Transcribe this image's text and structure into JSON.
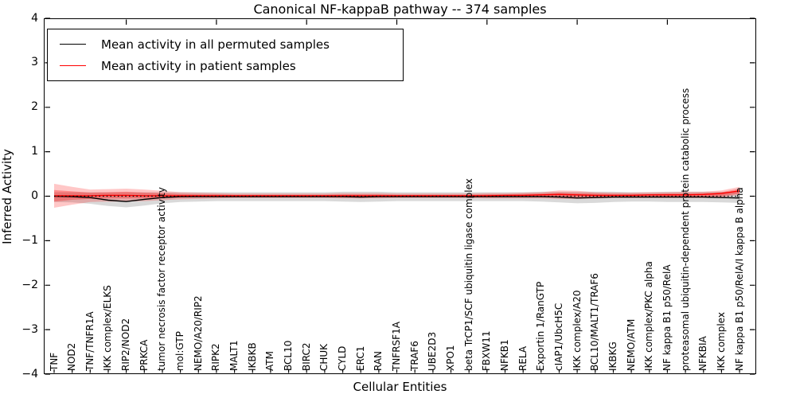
{
  "title": "Canonical NF-kappaB pathway -- 374 samples",
  "legend": {
    "entries": [
      {
        "label": "Mean activity in all permuted samples",
        "color": "#000000"
      },
      {
        "label": "Mean activity in patient samples",
        "color": "#ff0000"
      }
    ]
  },
  "colors": {
    "permuted_line": "#000000",
    "patient_line": "#ff0000",
    "permuted_band": "rgba(0,0,0,0.15)",
    "patient_band_outer": "rgba(255,0,0,0.22)",
    "patient_band_inner": "rgba(255,0,0,0.30)"
  },
  "chart_data": {
    "type": "line",
    "title": "Canonical NF-kappaB pathway -- 374 samples",
    "xlabel": "Cellular Entities",
    "ylabel": "Inferred Activity",
    "ylim": [
      -4,
      4
    ],
    "grid": false,
    "legend_position": "upper left",
    "ytick_values": [
      4,
      3,
      2,
      1,
      0,
      -1,
      -2,
      -3,
      -4
    ],
    "ytick_labels": [
      "4",
      "3",
      "2",
      "1",
      "0",
      "−1",
      "−2",
      "−3",
      "−4"
    ],
    "top_tick_indices": [
      4,
      9,
      14,
      19,
      24,
      29,
      34
    ],
    "zero_line": 0,
    "categories": [
      "TNF",
      "NOD2",
      "TNF/TNFR1A",
      "IKK complex/ELKS",
      "RIP2/NOD2",
      "PRKCA",
      "tumor necrosis factor receptor activity",
      "mol:GTP",
      "NEMO/A20/RIP2",
      "RIPK2",
      "MALT1",
      "IKBKB",
      "ATM",
      "BCL10",
      "BIRC2",
      "CHUK",
      "CYLD",
      "ERC1",
      "RAN",
      "TNFRSF1A",
      "TRAF6",
      "UBE2D3",
      "XPO1",
      "beta TrCP1/SCF ubiquitin ligase complex",
      "FBXW11",
      "NFKB1",
      "RELA",
      "Exportin 1/RanGTP",
      "cIAP1/UbcH5C",
      "IKK complex/A20",
      "BCL10/MALT1/TRAF6",
      "IKBKG",
      "NEMO/ATM",
      "IKK complex/PKC alpha",
      "NF kappa B1 p50/RelA",
      "proteasomal ubiquitin-dependent protein catabolic process",
      "NFKBIA",
      "IKK complex",
      "NF kappa B1 p50/RelA/I kappa B alpha"
    ],
    "series": [
      {
        "name": "Mean activity in all permuted samples",
        "color": "#000000",
        "values": [
          0.0,
          -0.01,
          -0.03,
          -0.09,
          -0.12,
          -0.07,
          -0.03,
          -0.01,
          -0.01,
          -0.01,
          -0.01,
          -0.01,
          -0.01,
          -0.01,
          -0.01,
          -0.01,
          -0.01,
          -0.02,
          -0.01,
          -0.01,
          -0.01,
          -0.01,
          -0.01,
          -0.01,
          -0.01,
          -0.01,
          -0.01,
          -0.01,
          -0.02,
          -0.04,
          -0.03,
          -0.02,
          -0.02,
          -0.02,
          -0.02,
          -0.02,
          -0.02,
          -0.03,
          -0.04
        ],
        "band_lower": [
          -0.13,
          -0.14,
          -0.17,
          -0.22,
          -0.25,
          -0.21,
          -0.16,
          -0.13,
          -0.12,
          -0.11,
          -0.11,
          -0.11,
          -0.11,
          -0.11,
          -0.11,
          -0.11,
          -0.12,
          -0.13,
          -0.12,
          -0.11,
          -0.11,
          -0.11,
          -0.11,
          -0.11,
          -0.11,
          -0.11,
          -0.11,
          -0.12,
          -0.14,
          -0.16,
          -0.15,
          -0.13,
          -0.12,
          -0.12,
          -0.13,
          -0.13,
          -0.13,
          -0.14,
          -0.15
        ],
        "band_upper": [
          0.09,
          0.09,
          0.09,
          0.09,
          0.09,
          0.09,
          0.09,
          0.09,
          0.09,
          0.09,
          0.09,
          0.09,
          0.09,
          0.09,
          0.09,
          0.09,
          0.1,
          0.1,
          0.1,
          0.09,
          0.09,
          0.09,
          0.09,
          0.09,
          0.09,
          0.09,
          0.09,
          0.1,
          0.1,
          0.1,
          0.1,
          0.1,
          0.09,
          0.09,
          0.1,
          0.1,
          0.1,
          0.1,
          0.1
        ]
      },
      {
        "name": "Mean activity in patient samples",
        "color": "#ff0000",
        "values": [
          0.01,
          0.01,
          0.01,
          0.02,
          0.02,
          0.01,
          0.01,
          0.01,
          0.01,
          0.01,
          0.01,
          0.01,
          0.01,
          0.01,
          0.01,
          0.01,
          0.01,
          0.01,
          0.01,
          0.01,
          0.01,
          0.01,
          0.01,
          0.01,
          0.01,
          0.02,
          0.02,
          0.03,
          0.04,
          0.03,
          0.02,
          0.02,
          0.02,
          0.03,
          0.03,
          0.03,
          0.04,
          0.06,
          0.12
        ],
        "band_lower": [
          -0.26,
          -0.19,
          -0.13,
          -0.12,
          -0.12,
          -0.11,
          -0.09,
          -0.07,
          -0.06,
          -0.05,
          -0.04,
          -0.04,
          -0.04,
          -0.04,
          -0.04,
          -0.04,
          -0.05,
          -0.05,
          -0.05,
          -0.04,
          -0.04,
          -0.04,
          -0.04,
          -0.04,
          -0.05,
          -0.05,
          -0.05,
          -0.05,
          -0.06,
          -0.06,
          -0.05,
          -0.04,
          -0.04,
          -0.04,
          -0.04,
          -0.04,
          -0.04,
          -0.03,
          0.03
        ],
        "band_upper": [
          0.28,
          0.21,
          0.15,
          0.16,
          0.17,
          0.15,
          0.12,
          0.09,
          0.08,
          0.07,
          0.06,
          0.06,
          0.06,
          0.06,
          0.06,
          0.06,
          0.07,
          0.07,
          0.07,
          0.06,
          0.06,
          0.06,
          0.06,
          0.06,
          0.07,
          0.07,
          0.08,
          0.09,
          0.13,
          0.12,
          0.09,
          0.08,
          0.08,
          0.09,
          0.09,
          0.1,
          0.1,
          0.13,
          0.21
        ],
        "band_inner_lower": [
          -0.12,
          -0.08,
          -0.06,
          -0.05,
          -0.05,
          -0.05,
          -0.04,
          -0.03,
          -0.02,
          -0.02,
          -0.02,
          -0.02,
          -0.02,
          -0.02,
          -0.02,
          -0.02,
          -0.02,
          -0.02,
          -0.02,
          -0.02,
          -0.02,
          -0.02,
          -0.02,
          -0.02,
          -0.02,
          -0.02,
          -0.02,
          -0.02,
          -0.02,
          -0.02,
          -0.02,
          -0.01,
          -0.01,
          -0.01,
          -0.01,
          -0.01,
          -0.01,
          0.0,
          0.06
        ],
        "band_inner_upper": [
          0.14,
          0.11,
          0.08,
          0.09,
          0.1,
          0.08,
          0.07,
          0.05,
          0.04,
          0.04,
          0.03,
          0.03,
          0.03,
          0.03,
          0.03,
          0.03,
          0.04,
          0.04,
          0.04,
          0.03,
          0.03,
          0.03,
          0.03,
          0.03,
          0.04,
          0.04,
          0.05,
          0.06,
          0.08,
          0.07,
          0.06,
          0.05,
          0.05,
          0.05,
          0.06,
          0.06,
          0.07,
          0.09,
          0.17
        ]
      }
    ]
  }
}
